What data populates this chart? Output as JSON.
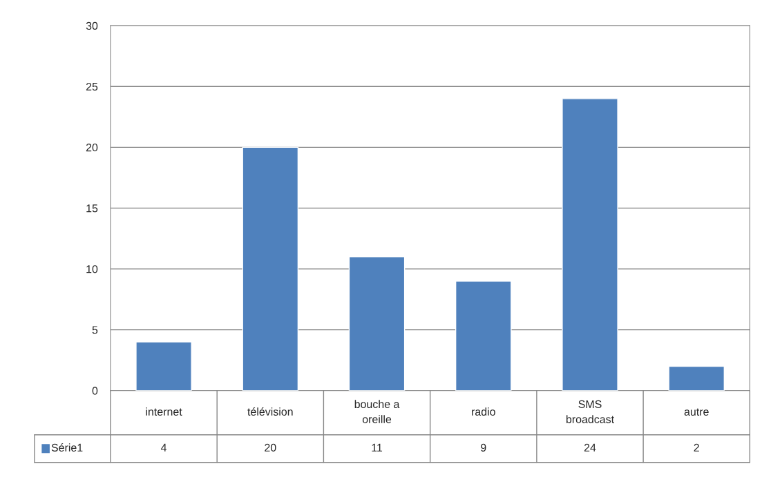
{
  "chart_data": {
    "type": "bar",
    "categories": [
      "internet",
      "télévision",
      "bouche a oreille",
      "radio",
      "SMS broadcast",
      "autre"
    ],
    "series": [
      {
        "name": "Série1",
        "color": "#4f81bd",
        "values": [
          4,
          20,
          11,
          9,
          24,
          2
        ]
      }
    ],
    "ylim": [
      0,
      30
    ],
    "yticks": [
      0,
      5,
      10,
      15,
      20,
      25,
      30
    ],
    "grid": "y",
    "data_labels": true
  }
}
